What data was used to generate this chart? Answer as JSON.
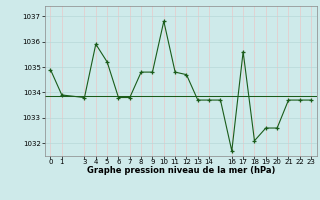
{
  "x": [
    0,
    1,
    3,
    4,
    5,
    6,
    7,
    8,
    9,
    10,
    11,
    12,
    13,
    14,
    15,
    16,
    17,
    18,
    19,
    20,
    21,
    22,
    23
  ],
  "y": [
    1034.9,
    1033.9,
    1033.8,
    1035.9,
    1035.2,
    1033.8,
    1033.8,
    1034.8,
    1034.8,
    1036.8,
    1034.8,
    1034.7,
    1033.7,
    1033.7,
    1033.7,
    1031.7,
    1035.6,
    1032.1,
    1032.6,
    1032.6,
    1033.7,
    1033.7,
    1033.7
  ],
  "hline_y": 1033.85,
  "ylim": [
    1031.5,
    1037.4
  ],
  "xlim": [
    -0.5,
    23.5
  ],
  "yticks": [
    1032,
    1033,
    1034,
    1035,
    1036,
    1037
  ],
  "xticks": [
    0,
    1,
    3,
    4,
    5,
    6,
    7,
    8,
    9,
    10,
    11,
    12,
    13,
    14,
    16,
    17,
    18,
    19,
    20,
    21,
    22,
    23
  ],
  "xtick_labels": [
    "0",
    "1",
    "3",
    "4",
    "5",
    "6",
    "7",
    "8",
    "9",
    "10",
    "11",
    "12",
    "13",
    "14",
    "16",
    "17",
    "18",
    "19",
    "20",
    "21",
    "22",
    "23"
  ],
  "line_color": "#1a5c1a",
  "marker_color": "#1a5c1a",
  "bg_color": "#ceeaea",
  "grid_color": "#b8d8d8",
  "hline_color": "#1a5c1a",
  "xlabel": "Graphe pression niveau de la mer (hPa)",
  "xlabel_fontsize": 6.0,
  "tick_fontsize": 5.0,
  "figsize": [
    3.2,
    2.0
  ],
  "dpi": 100
}
